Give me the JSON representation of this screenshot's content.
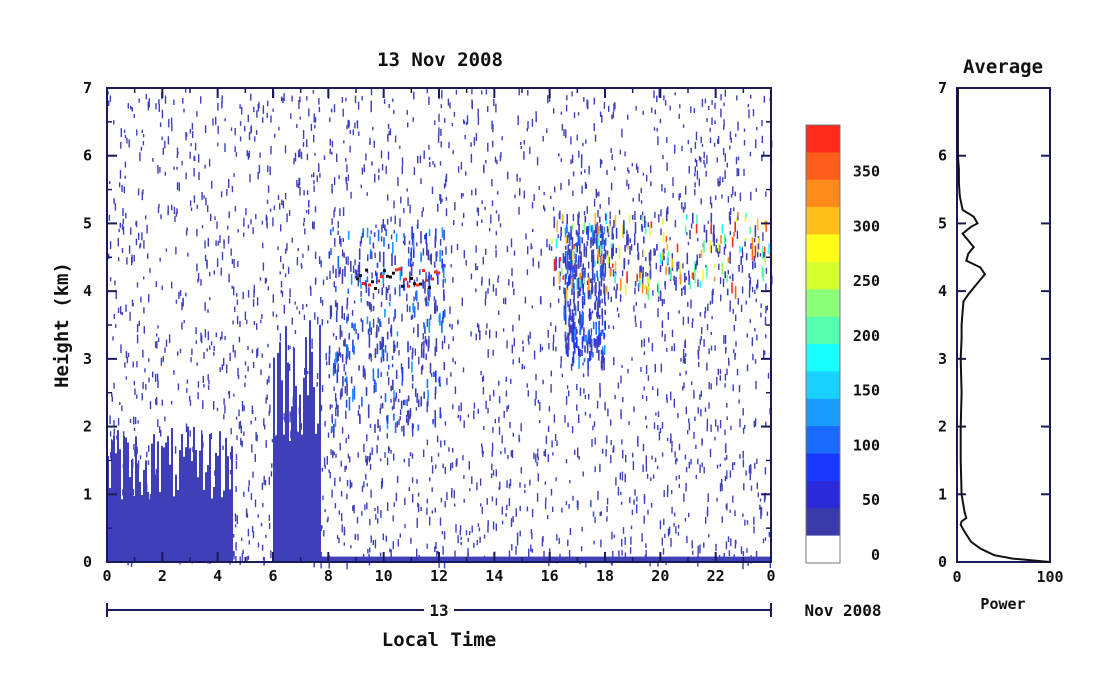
{
  "title": "13 Nov 2008",
  "ylabel": "Height (km)",
  "xlabel": "Local Time",
  "date_row": {
    "day": "13",
    "month_year": "Nov 2008"
  },
  "colorbar": {
    "labels": [
      "350",
      "300",
      "250",
      "200",
      "150",
      "100",
      "50",
      "0"
    ],
    "colors": [
      "#ff2a1a",
      "#ff5e1a",
      "#ff8c1a",
      "#ffbf1a",
      "#ffff1a",
      "#d8ff2e",
      "#8cff7a",
      "#55ffb0",
      "#1affff",
      "#1ad0ff",
      "#1a9cff",
      "#1a6aff",
      "#1a38ff",
      "#2a2ad8",
      "#3a3aa8"
    ]
  },
  "colors": {
    "weak_echo": "#3f3fb8",
    "axis": "#1a1a5a"
  },
  "chart_data": [
    {
      "type": "heatmap",
      "title": "13 Nov 2008",
      "xlabel": "Local Time",
      "ylabel": "Height (km)",
      "x_ticks": [
        "0",
        "2",
        "4",
        "6",
        "8",
        "10",
        "12",
        "14",
        "16",
        "18",
        "20",
        "22",
        "0"
      ],
      "xlim": [
        0,
        24
      ],
      "y_ticks": [
        "0",
        "1",
        "2",
        "3",
        "4",
        "5",
        "6",
        "7"
      ],
      "ylim": [
        0,
        7
      ],
      "colorbar_range": [
        0,
        380
      ],
      "features": [
        {
          "x": [
            0,
            4.5
          ],
          "y_top": 2.0,
          "level": 0
        },
        {
          "x": [
            6.0,
            7.7
          ],
          "y_top": 3.7,
          "level": 0
        },
        {
          "x": [
            8.0,
            12.2
          ],
          "y": [
            2.0,
            5.0
          ],
          "level": 120
        },
        {
          "x": [
            9.0,
            12.0
          ],
          "y": 4.2,
          "level": 380
        },
        {
          "x": [
            16.5,
            18.0
          ],
          "y": [
            3.0,
            5.0
          ],
          "level": 100
        },
        {
          "x": [
            16.0,
            24.0
          ],
          "y": [
            4.0,
            5.2
          ],
          "level": 380
        }
      ]
    },
    {
      "type": "line",
      "title": "Average",
      "xlabel": "Power",
      "x_ticks": [
        "0",
        "100"
      ],
      "xlim": [
        0,
        100
      ],
      "y_ticks": [
        "0",
        "1",
        "2",
        "3",
        "4",
        "5",
        "6",
        "7"
      ],
      "ylim": [
        0,
        7
      ],
      "x": [
        100,
        60,
        40,
        25,
        15,
        8,
        4,
        5,
        10,
        8,
        5,
        4,
        4,
        5,
        4,
        5,
        5,
        6,
        7,
        12,
        18,
        30,
        25,
        10,
        12,
        18,
        12,
        6,
        15,
        22,
        18,
        6,
        3,
        2,
        2,
        1,
        1,
        1
      ],
      "y": [
        0,
        0.05,
        0.1,
        0.2,
        0.3,
        0.45,
        0.55,
        0.6,
        0.65,
        0.75,
        1.0,
        1.5,
        2.0,
        2.5,
        3.0,
        3.3,
        3.5,
        3.7,
        3.85,
        3.95,
        4.05,
        4.25,
        4.35,
        4.45,
        4.55,
        4.65,
        4.75,
        4.85,
        4.95,
        5.0,
        5.1,
        5.2,
        5.4,
        5.6,
        5.8,
        6.0,
        6.5,
        7.0
      ]
    }
  ]
}
